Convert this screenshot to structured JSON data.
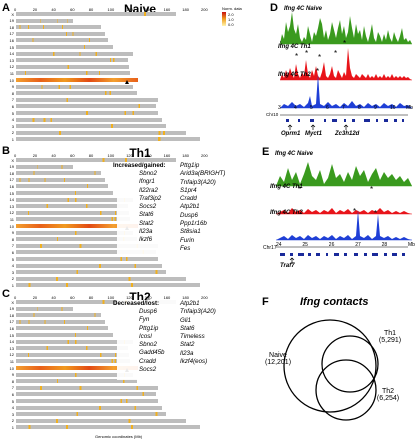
{
  "panels": {
    "a": {
      "letter": "A",
      "title": "Naive",
      "legend_title": "Norm. data",
      "legend_ticks": [
        "2.0",
        "1.0",
        "0.0"
      ]
    },
    "b": {
      "letter": "B",
      "title": "Th1",
      "header": "Increased/gained:",
      "col1": [
        "Sbno2",
        "Ifngr1",
        "Il22ra2",
        "Traf3ip2",
        "Socs2",
        "Stat6",
        "Stat2",
        "Il23a",
        "Ikzf6"
      ],
      "col2": [
        "Pttg1ip",
        "Arid3a(BRIGHT)",
        "Tnfaip3(A20)",
        "S1pr4",
        "Cradd",
        "Atp2b1",
        "Dusp6",
        "Ppp1r16b",
        "St8sia1",
        "Furin",
        "Fes"
      ]
    },
    "c": {
      "letter": "C",
      "title": "Th2",
      "header": "Decreased/lost:",
      "col1": [
        "Dusp6",
        "Fyn",
        "Pttg1ip",
        "Icosl",
        "Sbno2",
        "Gadd45b",
        "Cradd",
        "Socs2"
      ],
      "col2": [
        "Atp2b1",
        "Tnfaip3(A20)",
        "Gli1",
        "Stat6",
        "Timeless",
        "Stat2",
        "Il23a",
        "Ikzf4(eos)"
      ],
      "xlabel": "Genomic coordinates (Mb)"
    },
    "d": {
      "letter": "D",
      "tracks": [
        "Ifng 4C Naive",
        "Ifng 4C Th1",
        "Ifng 4C Th2"
      ],
      "chrom": "Chr10",
      "axis": [
        "3",
        "4",
        "5",
        "6",
        "7",
        "8",
        "9",
        "10",
        "Mb"
      ],
      "genes": [
        "Oprm1",
        "Myct1",
        "Zc3h12d"
      ]
    },
    "e": {
      "letter": "E",
      "tracks": [
        "Ifng 4C Naive",
        "Ifng 4C Th1",
        "Ifng 4C Th2"
      ],
      "chrom": "Chr17",
      "axis": [
        "24",
        "25",
        "26",
        "27",
        "28",
        "Mb"
      ],
      "genes": [
        "Traf7"
      ]
    },
    "f": {
      "letter": "F",
      "title": "Ifng contacts",
      "sets": [
        {
          "name": "Naive",
          "count": "(12,201)"
        },
        {
          "name": "Th1",
          "count": "(5,291)"
        },
        {
          "name": "Th2",
          "count": "(6,254)"
        }
      ]
    }
  },
  "karyotype": {
    "chromosomes": [
      "X",
      "19",
      "18",
      "17",
      "16",
      "15",
      "14",
      "13",
      "12",
      "11",
      "10",
      "9",
      "8",
      "7",
      "6",
      "5",
      "4",
      "3",
      "2",
      "1"
    ],
    "lengths_mb": [
      171,
      61,
      91,
      95,
      98,
      104,
      125,
      120,
      121,
      122,
      130,
      125,
      129,
      152,
      150,
      152,
      156,
      160,
      182,
      197
    ],
    "x_ticks": [
      "0",
      "20",
      "40",
      "60",
      "80",
      "100",
      "120",
      "140",
      "160",
      "180",
      "200"
    ]
  },
  "colors": {
    "naive": "#3a9a1e",
    "th1": "#e8141a",
    "th2": "#1f3fd6",
    "chrom_bg": "#bdbdbd",
    "hot": "#f08a10",
    "genes": "#1a2a9a"
  }
}
